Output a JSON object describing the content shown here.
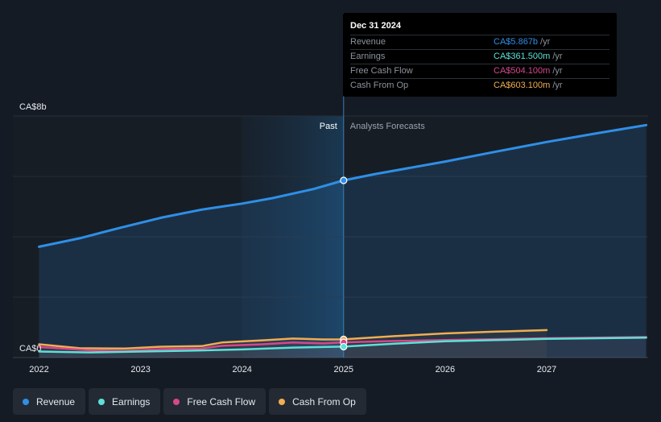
{
  "chart_data": {
    "type": "line",
    "x_ticks": [
      "2022",
      "2023",
      "2024",
      "2025",
      "2026",
      "2027"
    ],
    "y_tick_labels": [
      "CA$8b",
      "CA$0"
    ],
    "ylim": [
      0,
      8
    ],
    "xlim": [
      2021.8,
      2027.98
    ],
    "divider_x": 2025.0,
    "past_label": "Past",
    "forecast_label": "Analysts Forecasts",
    "series": [
      {
        "name": "Revenue",
        "color": "#2f8fe6",
        "past": [
          [
            2022.0,
            3.67
          ],
          [
            2022.4,
            3.95
          ],
          [
            2022.8,
            4.3
          ],
          [
            2023.2,
            4.63
          ],
          [
            2023.6,
            4.9
          ],
          [
            2024.0,
            5.1
          ],
          [
            2024.3,
            5.28
          ],
          [
            2024.7,
            5.58
          ],
          [
            2025.0,
            5.867
          ]
        ],
        "forecast": [
          [
            2025.0,
            5.867
          ],
          [
            2025.3,
            6.07
          ],
          [
            2026.0,
            6.49
          ],
          [
            2026.5,
            6.82
          ],
          [
            2027.0,
            7.14
          ],
          [
            2027.5,
            7.43
          ],
          [
            2027.98,
            7.7
          ]
        ]
      },
      {
        "name": "Earnings",
        "color": "#5ce1d6",
        "past": [
          [
            2022.0,
            0.2
          ],
          [
            2022.5,
            0.17
          ],
          [
            2023.0,
            0.2
          ],
          [
            2023.5,
            0.23
          ],
          [
            2024.0,
            0.27
          ],
          [
            2024.5,
            0.33
          ],
          [
            2025.0,
            0.3615
          ]
        ],
        "forecast": [
          [
            2025.0,
            0.3615
          ],
          [
            2025.5,
            0.46
          ],
          [
            2026.0,
            0.54
          ],
          [
            2026.5,
            0.58
          ],
          [
            2027.0,
            0.62
          ],
          [
            2027.5,
            0.64
          ],
          [
            2027.98,
            0.66
          ]
        ]
      },
      {
        "name": "Free Cash Flow",
        "color": "#d6478b",
        "past": [
          [
            2022.0,
            0.35
          ],
          [
            2022.5,
            0.24
          ],
          [
            2022.85,
            0.22
          ],
          [
            2023.2,
            0.28
          ],
          [
            2023.6,
            0.3
          ],
          [
            2023.8,
            0.39
          ],
          [
            2024.2,
            0.44
          ],
          [
            2024.5,
            0.5
          ],
          [
            2024.8,
            0.47
          ],
          [
            2025.0,
            0.5041
          ]
        ],
        "forecast": [
          [
            2025.0,
            0.5041
          ],
          [
            2025.5,
            0.55
          ],
          [
            2026.0,
            0.58
          ],
          [
            2026.5,
            0.61
          ],
          [
            2027.0,
            0.64
          ],
          [
            2027.5,
            0.66
          ],
          [
            2027.98,
            0.68
          ]
        ]
      },
      {
        "name": "Cash From Op",
        "color": "#f0ad52",
        "past": [
          [
            2022.0,
            0.44
          ],
          [
            2022.4,
            0.31
          ],
          [
            2022.85,
            0.3
          ],
          [
            2023.2,
            0.36
          ],
          [
            2023.6,
            0.38
          ],
          [
            2023.8,
            0.5
          ],
          [
            2024.2,
            0.57
          ],
          [
            2024.5,
            0.63
          ],
          [
            2024.8,
            0.6
          ],
          [
            2025.0,
            0.6031
          ]
        ],
        "forecast": [
          [
            2025.0,
            0.6031
          ],
          [
            2025.5,
            0.71
          ],
          [
            2026.0,
            0.8
          ],
          [
            2026.5,
            0.86
          ],
          [
            2027.0,
            0.91
          ]
        ]
      }
    ]
  },
  "tooltip": {
    "date": "Dec 31 2024",
    "unit": "/yr",
    "rows": [
      {
        "label": "Revenue",
        "value": "CA$5.867b",
        "color": "#2f8fe6"
      },
      {
        "label": "Earnings",
        "value": "CA$361.500m",
        "color": "#5ce1d6"
      },
      {
        "label": "Free Cash Flow",
        "value": "CA$504.100m",
        "color": "#d6478b"
      },
      {
        "label": "Cash From Op",
        "value": "CA$603.100m",
        "color": "#f0ad52"
      }
    ]
  },
  "legend": [
    {
      "label": "Revenue",
      "color": "#2f8fe6"
    },
    {
      "label": "Earnings",
      "color": "#5ce1d6"
    },
    {
      "label": "Free Cash Flow",
      "color": "#d6478b"
    },
    {
      "label": "Cash From Op",
      "color": "#f0ad52"
    }
  ]
}
